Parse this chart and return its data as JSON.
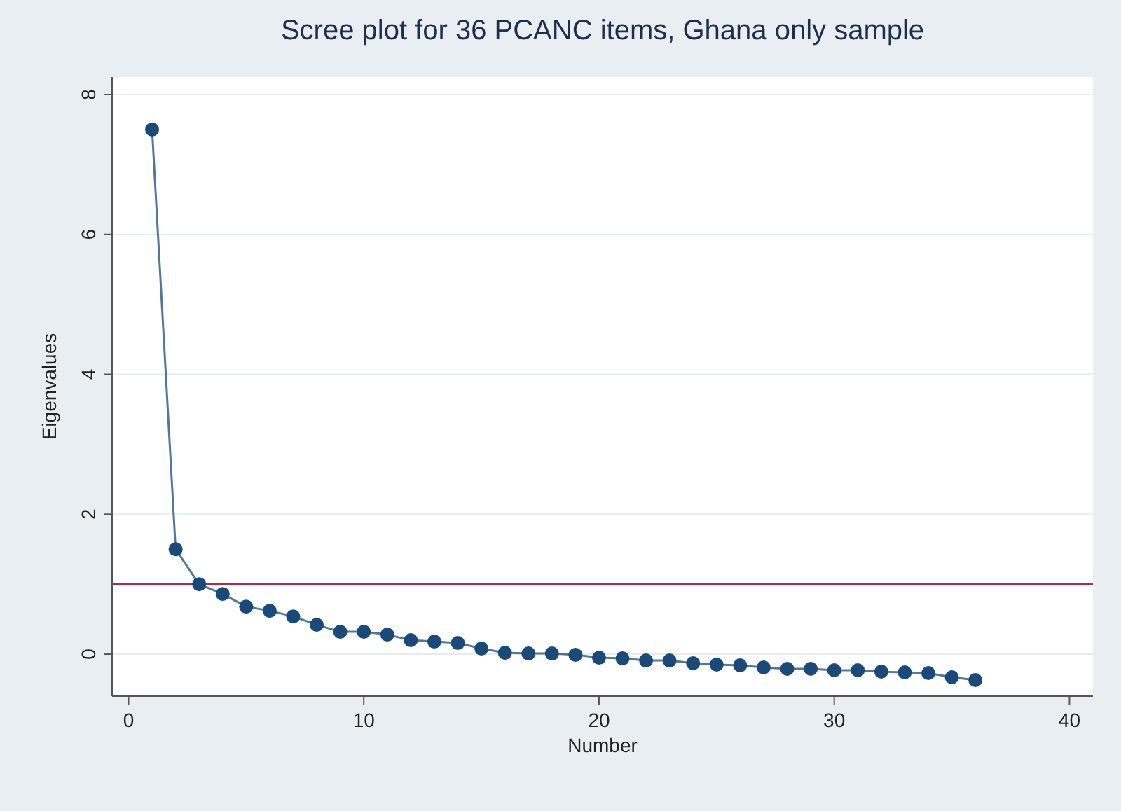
{
  "chart_data": {
    "type": "line",
    "title": "Scree plot for 36 PCANC items, Ghana only sample",
    "xlabel": "Number",
    "ylabel": "Eigenvalues",
    "x": [
      1,
      2,
      3,
      4,
      5,
      6,
      7,
      8,
      9,
      10,
      11,
      12,
      13,
      14,
      15,
      16,
      17,
      18,
      19,
      20,
      21,
      22,
      23,
      24,
      25,
      26,
      27,
      28,
      29,
      30,
      31,
      32,
      33,
      34,
      35,
      36
    ],
    "series": [
      {
        "color": "#1a4a7a",
        "values": [
          7.5,
          1.5,
          1.0,
          0.86,
          0.68,
          0.62,
          0.54,
          0.42,
          0.32,
          0.32,
          0.28,
          0.2,
          0.18,
          0.16,
          0.08,
          0.02,
          0.01,
          0.01,
          -0.01,
          -0.05,
          -0.06,
          -0.09,
          -0.09,
          -0.13,
          -0.15,
          -0.16,
          -0.19,
          -0.21,
          -0.21,
          -0.23,
          -0.23,
          -0.25,
          -0.26,
          -0.27,
          -0.33,
          -0.37
        ]
      }
    ],
    "xlim": [
      -0.7,
      41
    ],
    "ylim": [
      -0.6,
      8.25
    ],
    "xticks": [
      0,
      10,
      20,
      30,
      40
    ],
    "yticks": [
      0,
      2,
      4,
      6,
      8
    ],
    "ref_lines": [
      {
        "axis": "y",
        "value": 1,
        "color": "#b22a45"
      }
    ],
    "grid": "y",
    "marker": "circle",
    "line_style": "solid"
  }
}
